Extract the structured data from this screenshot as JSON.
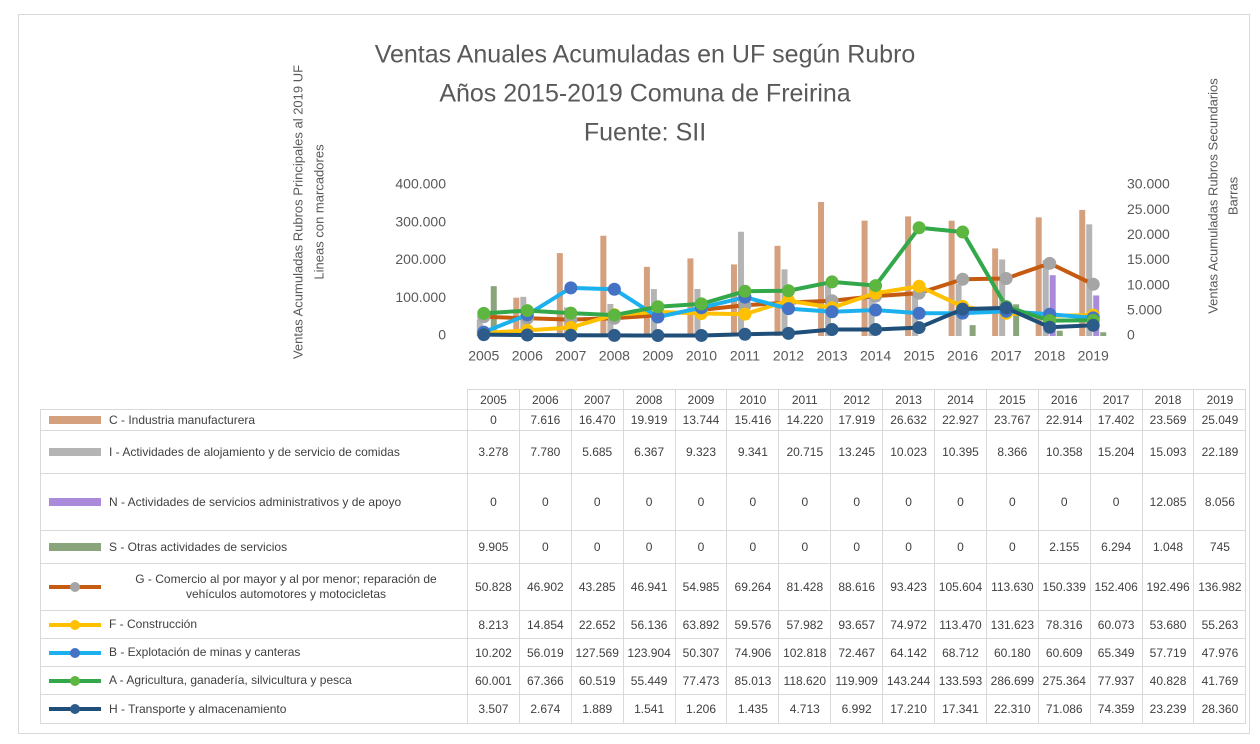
{
  "chart_data": {
    "type": "combo",
    "title": [
      "Ventas Anuales Acumuladas en UF según Rubro",
      "Años 2015-2019 Comuna de Freirina",
      "Fuente: SII"
    ],
    "y_label": [
      "Ventas Acumuladas Rubros Principales al 2019 UF",
      "Lineas con marcadores"
    ],
    "y2_label": [
      "Ventas Acumuladas Rubros Secundarios",
      "Barras"
    ],
    "categories": [
      "2005",
      "2006",
      "2007",
      "2008",
      "2009",
      "2010",
      "2011",
      "2012",
      "2013",
      "2014",
      "2015",
      "2016",
      "2017",
      "2018",
      "2019"
    ],
    "ylim": [
      0,
      400000
    ],
    "yticks": [
      0,
      {
        "value": 100000,
        "label": "100.000"
      },
      {
        "value": 200000,
        "label": "200.000"
      },
      {
        "value": 300000,
        "label": "300.000"
      },
      {
        "value": 400000,
        "label": "400.000"
      }
    ],
    "y2lim": [
      0,
      30000
    ],
    "y2ticks": [
      0,
      {
        "value": 5000,
        "label": "5.000"
      },
      {
        "value": 10000,
        "label": "10.000"
      },
      {
        "value": 15000,
        "label": "15.000"
      },
      {
        "value": 20000,
        "label": "20.000"
      },
      {
        "value": 25000,
        "label": "25.000"
      },
      {
        "value": 30000,
        "label": "30.000"
      }
    ],
    "series": [
      {
        "name": "C - Industria manufacturera",
        "type": "bar",
        "axis": "y2",
        "color": "#d4a07e",
        "values": [
          0,
          7616,
          16470,
          19919,
          13744,
          15416,
          14220,
          17919,
          26632,
          22927,
          23767,
          22914,
          17402,
          23569,
          25049
        ],
        "value_labels": [
          "0",
          "7.616",
          "16.470",
          "19.919",
          "13.744",
          "15.416",
          "14.220",
          "17.919",
          "26.632",
          "22.927",
          "23.767",
          "22.914",
          "17.402",
          "23.569",
          "25.049"
        ]
      },
      {
        "name": "I - Actividades de alojamiento y de servicio de comidas",
        "type": "bar",
        "axis": "y2",
        "color": "#b4b4b4",
        "values": [
          3278,
          7780,
          5685,
          6367,
          9323,
          9341,
          20715,
          13245,
          10023,
          10395,
          8366,
          10358,
          15204,
          15093,
          22189
        ],
        "value_labels": [
          "3.278",
          "7.780",
          "5.685",
          "6.367",
          "9.323",
          "9.341",
          "20.715",
          "13.245",
          "10.023",
          "10.395",
          "8.366",
          "10.358",
          "15.204",
          "15.093",
          "22.189"
        ]
      },
      {
        "name": "N - Actividades de servicios administrativos y de apoyo",
        "type": "bar",
        "axis": "y2",
        "color": "#a98adb",
        "values": [
          0,
          0,
          0,
          0,
          0,
          0,
          0,
          0,
          0,
          0,
          0,
          0,
          0,
          12085,
          8056
        ],
        "value_labels": [
          "0",
          "0",
          "0",
          "0",
          "0",
          "0",
          "0",
          "0",
          "0",
          "0",
          "0",
          "0",
          "0",
          "12.085",
          "8.056"
        ]
      },
      {
        "name": "S - Otras actividades de servicios",
        "type": "bar",
        "axis": "y2",
        "color": "#8aa57b",
        "values": [
          9905,
          0,
          0,
          0,
          0,
          0,
          0,
          0,
          0,
          0,
          0,
          2155,
          6294,
          1048,
          745
        ],
        "value_labels": [
          "9.905",
          "0",
          "0",
          "0",
          "0",
          "0",
          "0",
          "0",
          "0",
          "0",
          "0",
          "2.155",
          "6.294",
          "1.048",
          "745"
        ]
      },
      {
        "name": "G - Comercio al por mayor y al por menor; reparación de vehículos automotores y motocicletas",
        "type": "line",
        "axis": "y",
        "color": "#c55a11",
        "marker_color": "#a5a5a5",
        "values": [
          50828,
          46902,
          43285,
          46941,
          54985,
          69264,
          81428,
          88616,
          93423,
          105604,
          113630,
          150339,
          152406,
          192496,
          136982
        ],
        "value_labels": [
          "50.828",
          "46.902",
          "43.285",
          "46.941",
          "54.985",
          "69.264",
          "81.428",
          "88.616",
          "93.423",
          "105.604",
          "113.630",
          "150.339",
          "152.406",
          "192.496",
          "136.982"
        ]
      },
      {
        "name": "F - Construcción",
        "type": "line",
        "axis": "y",
        "color": "#ffc000",
        "marker_color": "#ffc000",
        "values": [
          8213,
          14854,
          22652,
          56136,
          63892,
          59576,
          57982,
          93657,
          74972,
          113470,
          131623,
          78316,
          60073,
          53680,
          55263
        ],
        "value_labels": [
          "8.213",
          "14.854",
          "22.652",
          "56.136",
          "63.892",
          "59.576",
          "57.982",
          "93.657",
          "74.972",
          "113.470",
          "131.623",
          "78.316",
          "60.073",
          "53.680",
          "55.263"
        ]
      },
      {
        "name": "B - Explotación de minas y canteras",
        "type": "line",
        "axis": "y",
        "color": "#1cb0ee",
        "marker_color": "#4472c4",
        "values": [
          10202,
          56019,
          127569,
          123904,
          50307,
          74906,
          102818,
          72467,
          64142,
          68712,
          60180,
          60609,
          65349,
          57719,
          47976
        ],
        "value_labels": [
          "10.202",
          "56.019",
          "127.569",
          "123.904",
          "50.307",
          "74.906",
          "102.818",
          "72.467",
          "64.142",
          "68.712",
          "60.180",
          "60.609",
          "65.349",
          "57.719",
          "47.976"
        ]
      },
      {
        "name": "A - Agricultura, ganadería, silvicultura y pesca",
        "type": "line",
        "axis": "y",
        "color": "#33a84a",
        "marker_color": "#5cb63f",
        "values": [
          60001,
          67366,
          60519,
          55449,
          77473,
          85013,
          118620,
          119909,
          143244,
          133593,
          286699,
          275364,
          77937,
          40828,
          41769
        ],
        "value_labels": [
          "60.001",
          "67.366",
          "60.519",
          "55.449",
          "77.473",
          "85.013",
          "118.620",
          "119.909",
          "143.244",
          "133.593",
          "286.699",
          "275.364",
          "77.937",
          "40.828",
          "41.769"
        ]
      },
      {
        "name": "H - Transporte y almacenamiento",
        "type": "line",
        "axis": "y",
        "color": "#1f4e79",
        "marker_color": "#2e5c8a",
        "values": [
          3507,
          2674,
          1889,
          1541,
          1206,
          1435,
          4713,
          6992,
          17210,
          17341,
          22310,
          71086,
          74359,
          23239,
          28360
        ],
        "value_labels": [
          "3.507",
          "2.674",
          "1.889",
          "1.541",
          "1.206",
          "1.435",
          "4.713",
          "6.992",
          "17.210",
          "17.341",
          "22.310",
          "71.086",
          "74.359",
          "23.239",
          "28.360"
        ]
      }
    ]
  }
}
